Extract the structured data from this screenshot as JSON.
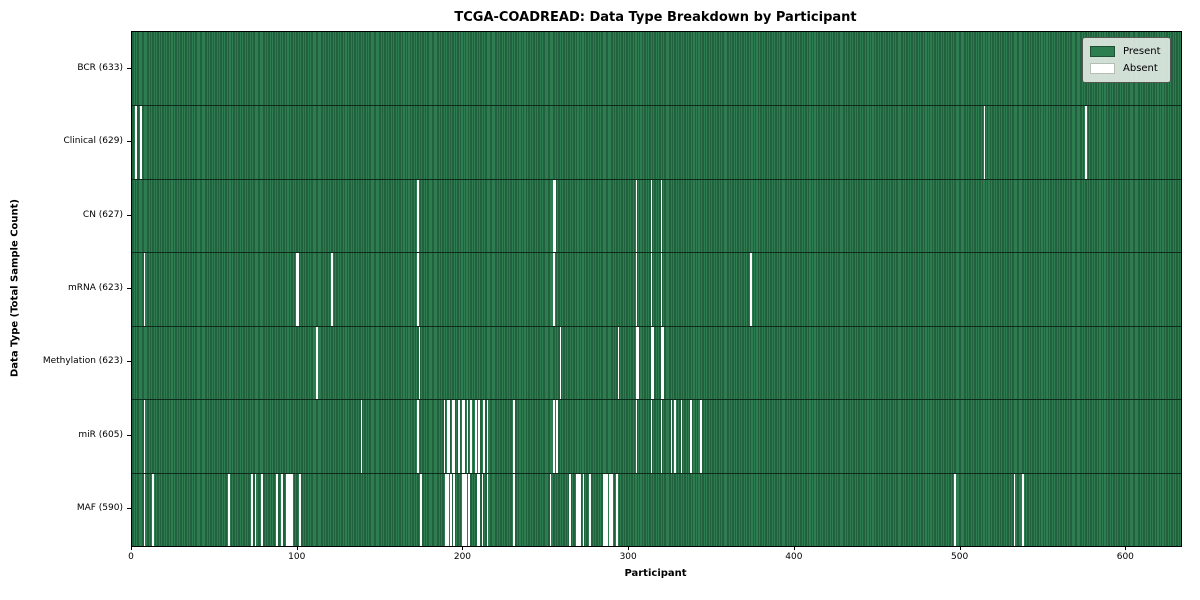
{
  "chart_data": {
    "type": "heatmap",
    "title": "TCGA-COADREAD: Data Type Breakdown by Participant",
    "xlabel": "Participant",
    "ylabel": "Data Type (Total Sample Count)",
    "n_participants": 633,
    "x_range": [
      0,
      633
    ],
    "x_ticks": [
      0,
      100,
      200,
      300,
      400,
      500,
      600
    ],
    "grid": false,
    "legend_position": "upper right",
    "legend": [
      {
        "label": "Present",
        "color": "#2e7d50"
      },
      {
        "label": "Absent",
        "color": "#ffffff"
      }
    ],
    "colors": {
      "present": "#2e7d50",
      "cell_edge": "#16452b",
      "absent": "#ffffff",
      "row_separator": "#0e2a1b"
    },
    "rows": [
      {
        "data_type": "BCR",
        "label": "BCR (633)",
        "total": 633,
        "absent": []
      },
      {
        "data_type": "Clinical",
        "label": "Clinical (629)",
        "total": 629,
        "absent": [
          2,
          5,
          514,
          575
        ]
      },
      {
        "data_type": "CN",
        "label": "CN (627)",
        "total": 627,
        "absent": [
          172,
          254,
          255,
          304,
          313,
          319
        ]
      },
      {
        "data_type": "mRNA",
        "label": "mRNA (623)",
        "total": 623,
        "absent": [
          7,
          99,
          100,
          120,
          172,
          254,
          304,
          313,
          319,
          373
        ]
      },
      {
        "data_type": "Methylation",
        "label": "Methylation (623)",
        "total": 623,
        "absent": [
          111,
          173,
          258,
          293,
          304,
          305,
          313,
          314,
          319,
          320
        ]
      },
      {
        "data_type": "miR",
        "label": "miR (605)",
        "total": 605,
        "absent": [
          7,
          138,
          172,
          188,
          190,
          191,
          193,
          194,
          197,
          199,
          200,
          202,
          204,
          207,
          209,
          212,
          214,
          230,
          254,
          256,
          304,
          313,
          319,
          325,
          327,
          331,
          337,
          343
        ]
      },
      {
        "data_type": "MAF",
        "label": "MAF (590)",
        "total": 590,
        "absent": [
          7,
          12,
          58,
          72,
          74,
          78,
          87,
          90,
          93,
          94,
          95,
          96,
          101,
          174,
          189,
          190,
          192,
          194,
          199,
          200,
          201,
          203,
          208,
          209,
          211,
          214,
          230,
          252,
          264,
          268,
          269,
          270,
          272,
          276,
          284,
          285,
          286,
          288,
          289,
          292,
          496,
          532,
          537
        ]
      }
    ]
  }
}
